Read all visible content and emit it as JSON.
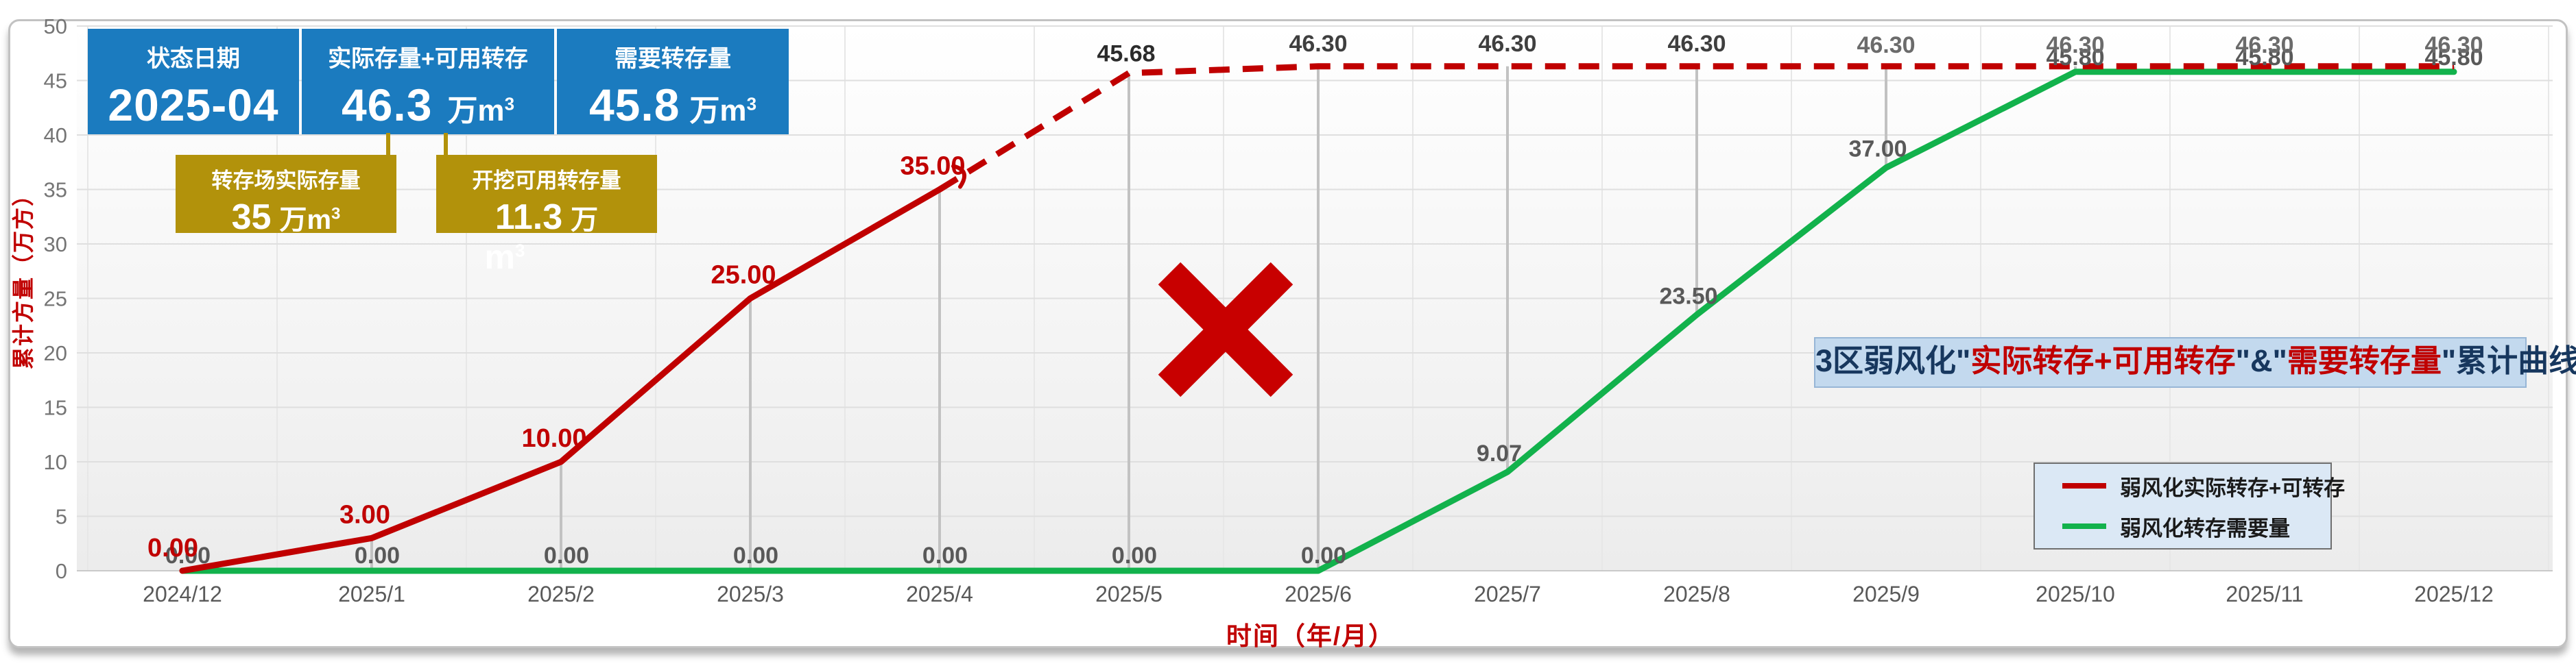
{
  "kpi": {
    "accent": "#1b7bbf",
    "box1": {
      "title": "状态日期",
      "value": "2025-04"
    },
    "box2": {
      "title": "实际存量+可用转存",
      "value": "46.3",
      "unit_base": "万m",
      "unit_sup": "3"
    },
    "box3": {
      "title": "需要转存量",
      "value": "45.8",
      "unit_base": "万m",
      "unit_sup": "3"
    }
  },
  "callouts": {
    "accent": "#b2920b",
    "box1": {
      "title": "转存场实际存量",
      "value": "35",
      "unit_base": "万m",
      "unit_sup": "3"
    },
    "box2": {
      "title": "开挖可用转存量",
      "value": "11.3",
      "unit": "万",
      "overflow_base": "m",
      "overflow_sup": "3"
    }
  },
  "annotation": {
    "segments": [
      {
        "text": "3区弱风化\"",
        "color": "#17375e"
      },
      {
        "text": "实际转存+可用转存",
        "color": "#c00000"
      },
      {
        "text": "\"&\"",
        "color": "#17375e"
      },
      {
        "text": "需要转存量",
        "color": "#c00000"
      },
      {
        "text": "\"累计曲线",
        "color": "#17375e"
      }
    ]
  },
  "legend": {
    "items": [
      {
        "label": "弱风化实际转存+可转存"
      },
      {
        "label": "弱风化转存需要量"
      }
    ]
  },
  "chart_data": {
    "type": "line",
    "title": "3区弱风化\"实际转存+可用转存\"&\"需要转存量\"累计曲线",
    "xlabel": "时间（年/月）",
    "ylabel": "累计方量（万方）",
    "ylim": [
      0,
      50
    ],
    "ytick_step": 5,
    "grid": true,
    "legend_position": "bottom-right",
    "categories": [
      "2024/12",
      "2025/1",
      "2025/2",
      "2025/3",
      "2025/4",
      "2025/5",
      "2025/6",
      "2025/7",
      "2025/8",
      "2025/9",
      "2025/10",
      "2025/11",
      "2025/12"
    ],
    "series": [
      {
        "name": "弱风化实际转存+可转存",
        "color": "#c00000",
        "style": "solid_then_dashed",
        "dashed_from_index": 4,
        "values": [
          0,
          3,
          10,
          25,
          35,
          45.68,
          46.3,
          46.3,
          46.3,
          46.3,
          46.3,
          46.3,
          46.3
        ],
        "labels": [
          "0.00",
          "3.00",
          "10.00",
          "25.00",
          "35.00",
          "45.68",
          "46.30",
          "46.30",
          "46.30",
          "46.30",
          "46.30",
          "46.30",
          "46.30"
        ]
      },
      {
        "name": "弱风化转存需要量",
        "color": "#12b24c",
        "style": "solid",
        "values": [
          0,
          0,
          0,
          0,
          0,
          0,
          0,
          9.07,
          23.5,
          37,
          45.8,
          45.8,
          45.8
        ],
        "labels": [
          "0.00",
          "0.00",
          "0.00",
          "0.00",
          "0.00",
          "0.00",
          "0.00",
          "9.07",
          "23.50",
          "37.00",
          "45.80",
          "45.80",
          "45.80"
        ]
      }
    ],
    "high_low_lines": true,
    "x_marker": {
      "symbol": "✖",
      "color": "#c80000",
      "between_categories": [
        "2025/5",
        "2025/6"
      ]
    }
  }
}
